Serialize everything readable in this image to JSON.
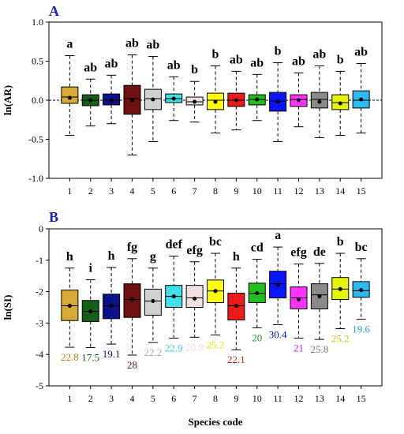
{
  "chart_data": [
    {
      "type": "boxplot",
      "panel_label": "A",
      "ylabel": "ln(AR)",
      "ylim": [
        -1.0,
        1.0
      ],
      "yticks": [
        "-1.0",
        "-0.5",
        "0.0",
        "0.5",
        "1.0"
      ],
      "reference_line": 0.0,
      "categories": [
        "1",
        "2",
        "3",
        "4",
        "5",
        "6",
        "7",
        "8",
        "9",
        "10",
        "11",
        "12",
        "13",
        "14",
        "15"
      ],
      "colors": [
        "#d7a935",
        "#175f17",
        "#0b138c",
        "#700f0f",
        "#d0d0d0",
        "#40e0e8",
        "#f2e0e0",
        "#ffff00",
        "#ee1a1a",
        "#1fbf1f",
        "#0a14ff",
        "#ff33ff",
        "#8a8a8a",
        "#e5f500",
        "#2fb9f0"
      ],
      "series": [
        {
          "name": "1",
          "whisker_low": -0.45,
          "q1": -0.04,
          "median": 0.04,
          "q3": 0.17,
          "whisker_high": 0.57,
          "mean": 0.03,
          "group": "a"
        },
        {
          "name": "2",
          "whisker_low": -0.33,
          "q1": -0.07,
          "median": 0.0,
          "q3": 0.07,
          "whisker_high": 0.27,
          "mean": 0.0,
          "group": "ab"
        },
        {
          "name": "3",
          "whisker_low": -0.3,
          "q1": -0.06,
          "median": 0.0,
          "q3": 0.08,
          "whisker_high": 0.32,
          "mean": 0.0,
          "group": "ab"
        },
        {
          "name": "4",
          "whisker_low": -0.7,
          "q1": -0.18,
          "median": 0.02,
          "q3": 0.19,
          "whisker_high": 0.58,
          "mean": 0.0,
          "group": "ab"
        },
        {
          "name": "5",
          "whisker_low": -0.53,
          "q1": -0.12,
          "median": 0.02,
          "q3": 0.14,
          "whisker_high": 0.56,
          "mean": 0.01,
          "group": "ab"
        },
        {
          "name": "6",
          "whisker_low": -0.26,
          "q1": -0.03,
          "median": 0.02,
          "q3": 0.08,
          "whisker_high": 0.3,
          "mean": 0.02,
          "group": "ab"
        },
        {
          "name": "7",
          "whisker_low": -0.28,
          "q1": -0.06,
          "median": -0.02,
          "q3": 0.04,
          "whisker_high": 0.24,
          "mean": -0.02,
          "group": "b"
        },
        {
          "name": "8",
          "whisker_low": -0.42,
          "q1": -0.12,
          "median": 0.0,
          "q3": 0.09,
          "whisker_high": 0.44,
          "mean": -0.02,
          "group": "b"
        },
        {
          "name": "9",
          "whisker_low": -0.38,
          "q1": -0.08,
          "median": 0.0,
          "q3": 0.09,
          "whisker_high": 0.37,
          "mean": 0.0,
          "group": "ab"
        },
        {
          "name": "10",
          "whisker_low": -0.26,
          "q1": -0.06,
          "median": 0.01,
          "q3": 0.07,
          "whisker_high": 0.33,
          "mean": 0.01,
          "group": "ab"
        },
        {
          "name": "11",
          "whisker_low": -0.53,
          "q1": -0.14,
          "median": -0.01,
          "q3": 0.1,
          "whisker_high": 0.48,
          "mean": -0.02,
          "group": "b"
        },
        {
          "name": "12",
          "whisker_low": -0.34,
          "q1": -0.08,
          "median": 0.01,
          "q3": 0.07,
          "whisker_high": 0.35,
          "mean": 0.0,
          "group": "ab"
        },
        {
          "name": "13",
          "whisker_low": -0.48,
          "q1": -0.1,
          "median": 0.01,
          "q3": 0.1,
          "whisker_high": 0.44,
          "mean": -0.02,
          "group": "ab"
        },
        {
          "name": "14",
          "whisker_low": -0.45,
          "q1": -0.12,
          "median": -0.03,
          "q3": 0.07,
          "whisker_high": 0.37,
          "mean": -0.04,
          "group": "b"
        },
        {
          "name": "15",
          "whisker_low": -0.42,
          "q1": -0.1,
          "median": 0.0,
          "q3": 0.12,
          "whisker_high": 0.47,
          "mean": 0.01,
          "group": "ab"
        }
      ]
    },
    {
      "type": "boxplot",
      "panel_label": "B",
      "ylabel": "ln(SI)",
      "xlabel": "Species code",
      "ylim": [
        -5,
        0
      ],
      "yticks": [
        "-5",
        "-4",
        "-3",
        "-2",
        "-1",
        "0"
      ],
      "categories": [
        "1",
        "2",
        "3",
        "4",
        "5",
        "6",
        "7",
        "8",
        "9",
        "10",
        "11",
        "12",
        "13",
        "14",
        "15"
      ],
      "colors": [
        "#d7a935",
        "#175f17",
        "#0b138c",
        "#700f0f",
        "#d0d0d0",
        "#40e0e8",
        "#f2e0e0",
        "#ffff00",
        "#ee1a1a",
        "#1fbf1f",
        "#0a14ff",
        "#ff33ff",
        "#8a8a8a",
        "#e5f500",
        "#2fb9f0"
      ],
      "series": [
        {
          "name": "1",
          "whisker_low": -3.77,
          "q1": -2.92,
          "median": -2.45,
          "q3": -1.95,
          "whisker_high": -1.25,
          "mean": -2.45,
          "group": "h",
          "si": "22.8",
          "si_color": "#b8860b"
        },
        {
          "name": "2",
          "whisker_low": -3.78,
          "q1": -2.95,
          "median": -2.63,
          "q3": -2.28,
          "whisker_high": -1.62,
          "mean": -2.63,
          "group": "i",
          "si": "17.5",
          "si_color": "#176117"
        },
        {
          "name": "3",
          "whisker_low": -3.67,
          "q1": -2.86,
          "median": -2.45,
          "q3": -2.08,
          "whisker_high": -1.23,
          "mean": -2.45,
          "group": "h",
          "si": "19.1",
          "si_color": "#0b138c"
        },
        {
          "name": "4",
          "whisker_low": -4.02,
          "q1": -2.82,
          "median": -2.25,
          "q3": -1.75,
          "whisker_high": -0.95,
          "mean": -2.25,
          "group": "fg",
          "si": "28",
          "si_color": "#5a1a0a"
        },
        {
          "name": "5",
          "whisker_low": -3.62,
          "q1": -2.75,
          "median": -2.3,
          "q3": -1.92,
          "whisker_high": -1.25,
          "mean": -2.3,
          "group": "g",
          "si": "22.2",
          "si_color": "#a8a8a8"
        },
        {
          "name": "6",
          "whisker_low": -3.48,
          "q1": -2.5,
          "median": -2.15,
          "q3": -1.8,
          "whisker_high": -0.87,
          "mean": -2.15,
          "group": "def",
          "si": "22.9",
          "si_color": "#38c8d8"
        },
        {
          "name": "7",
          "whisker_low": -3.45,
          "q1": -2.5,
          "median": -2.2,
          "q3": -1.8,
          "whisker_high": -1.05,
          "mean": -2.22,
          "group": "efg",
          "si": "20.9",
          "si_color": "#f2d8e8"
        },
        {
          "name": "8",
          "whisker_low": -3.38,
          "q1": -2.35,
          "median": -1.98,
          "q3": -1.63,
          "whisker_high": -0.78,
          "mean": -1.98,
          "group": "bc",
          "si": "25.2",
          "si_color": "#e8e800"
        },
        {
          "name": "9",
          "whisker_low": -3.85,
          "q1": -2.9,
          "median": -2.45,
          "q3": -2.05,
          "whisker_high": -1.25,
          "mean": -2.45,
          "group": "h",
          "si": "22.1",
          "si_color": "#c81a1a"
        },
        {
          "name": "10",
          "whisker_low": -3.15,
          "q1": -2.35,
          "median": -2.05,
          "q3": -1.73,
          "whisker_high": -0.97,
          "mean": -2.05,
          "group": "cd",
          "si": "20",
          "si_color": "#1a9f1a"
        },
        {
          "name": "11",
          "whisker_low": -3.05,
          "q1": -2.2,
          "median": -1.75,
          "q3": -1.35,
          "whisker_high": -0.58,
          "mean": -1.78,
          "group": "a",
          "si": "30.4",
          "si_color": "#0a14d8"
        },
        {
          "name": "12",
          "whisker_low": -3.48,
          "q1": -2.55,
          "median": -2.2,
          "q3": -1.85,
          "whisker_high": -1.12,
          "mean": -2.25,
          "group": "efg",
          "si": "21",
          "si_color": "#d81ad8"
        },
        {
          "name": "13",
          "whisker_low": -3.52,
          "q1": -2.55,
          "median": -2.1,
          "q3": -1.75,
          "whisker_high": -1.1,
          "mean": -2.15,
          "group": "de",
          "si": "25.8",
          "si_color": "#7a7a7a"
        },
        {
          "name": "14",
          "whisker_low": -3.18,
          "q1": -2.25,
          "median": -1.92,
          "q3": -1.55,
          "whisker_high": -0.78,
          "mean": -1.92,
          "group": "b",
          "si": "25.2",
          "si_color": "#c8c800"
        },
        {
          "name": "15",
          "whisker_low": -2.88,
          "q1": -2.18,
          "median": -1.97,
          "q3": -1.68,
          "whisker_high": -0.95,
          "mean": -1.95,
          "group": "bc",
          "si": "19.6",
          "si_color": "#1a9fd8"
        }
      ]
    }
  ]
}
